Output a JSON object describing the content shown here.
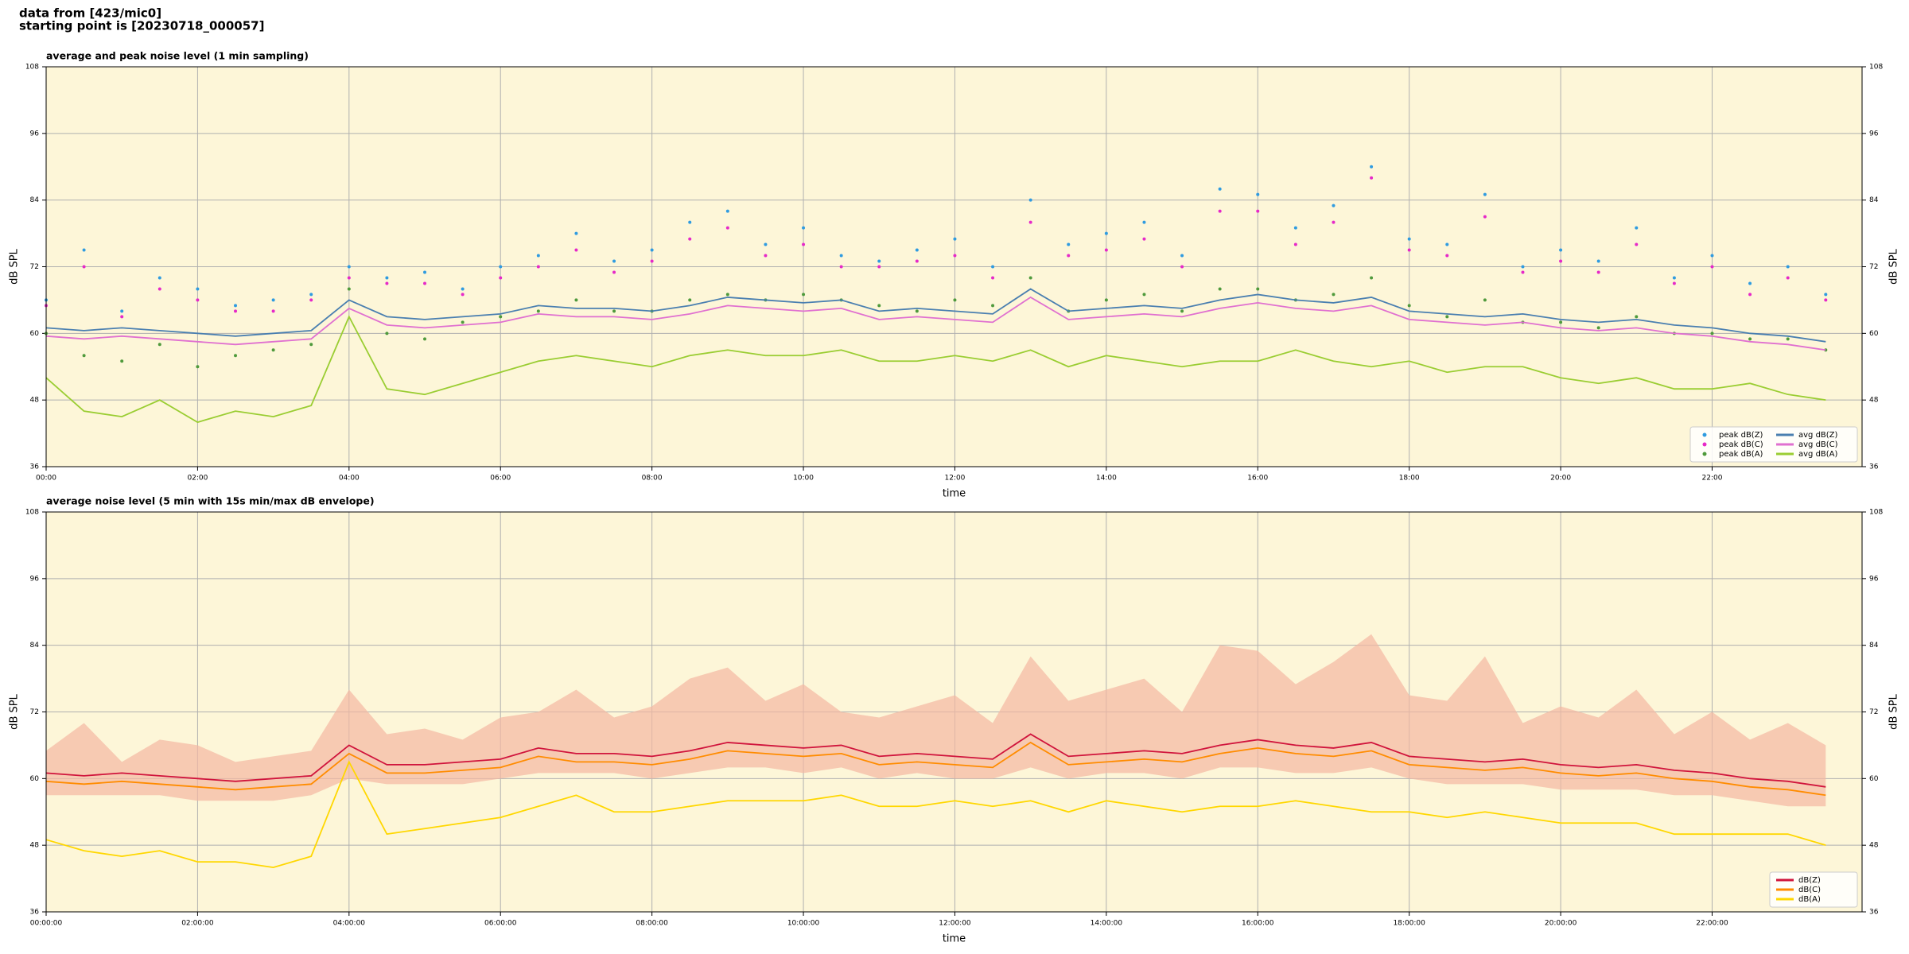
{
  "header": {
    "lines": [
      "data from [423/mic0]",
      "starting point is [20230718_000057]"
    ]
  },
  "chart_data": [
    {
      "type": "line",
      "title": "average and peak noise level (1 min sampling)",
      "x_label": "time",
      "y_label": "dB SPL",
      "y2_label": "dB SPL",
      "background": "#fdf6d8",
      "grid": true,
      "legend": "lower right",
      "xlim": [
        0,
        23.98
      ],
      "xticks": [
        {
          "value": 0,
          "label": "00:00"
        },
        {
          "value": 2,
          "label": "02:00"
        },
        {
          "value": 4,
          "label": "04:00"
        },
        {
          "value": 6,
          "label": "06:00"
        },
        {
          "value": 8,
          "label": "08:00"
        },
        {
          "value": 10,
          "label": "10:00"
        },
        {
          "value": 12,
          "label": "12:00"
        },
        {
          "value": 14,
          "label": "14:00"
        },
        {
          "value": 16,
          "label": "16:00"
        },
        {
          "value": 18,
          "label": "18:00"
        },
        {
          "value": 20,
          "label": "20:00"
        },
        {
          "value": 22,
          "label": "22:00"
        }
      ],
      "ylim": [
        36,
        108
      ],
      "yticks": [
        36,
        48,
        60,
        72,
        84,
        96,
        108
      ],
      "x": [
        0,
        0.5,
        1,
        1.5,
        2,
        2.5,
        3,
        3.5,
        4,
        4.5,
        5,
        5.5,
        6,
        6.5,
        7,
        7.5,
        8,
        8.5,
        9,
        9.5,
        10,
        10.5,
        11,
        11.5,
        12,
        12.5,
        13,
        13.5,
        14,
        14.5,
        15,
        15.5,
        16,
        16.5,
        17,
        17.5,
        18,
        18.5,
        19,
        19.5,
        20,
        20.5,
        21,
        21.5,
        22,
        22.5,
        23,
        23.5
      ],
      "series": [
        {
          "name": "peak dB(Z)",
          "style": "points",
          "color": "#2f9be0",
          "values": [
            66,
            75,
            64,
            70,
            68,
            65,
            66,
            67,
            72,
            70,
            71,
            68,
            72,
            74,
            78,
            73,
            75,
            80,
            82,
            76,
            79,
            74,
            73,
            75,
            77,
            72,
            84,
            76,
            78,
            80,
            74,
            86,
            85,
            79,
            83,
            90,
            77,
            76,
            85,
            72,
            75,
            73,
            79,
            70,
            74,
            69,
            72,
            67
          ]
        },
        {
          "name": "peak dB(C)",
          "style": "points",
          "color": "#e629c8",
          "values": [
            65,
            72,
            63,
            68,
            66,
            64,
            64,
            66,
            70,
            69,
            69,
            67,
            70,
            72,
            75,
            71,
            73,
            77,
            79,
            74,
            76,
            72,
            72,
            73,
            74,
            70,
            80,
            74,
            75,
            77,
            72,
            82,
            82,
            76,
            80,
            88,
            75,
            74,
            81,
            71,
            73,
            71,
            76,
            69,
            72,
            67,
            70,
            66
          ]
        },
        {
          "name": "peak dB(A)",
          "style": "points",
          "color": "#4f9a3c",
          "values": [
            60,
            56,
            55,
            58,
            54,
            56,
            57,
            58,
            68,
            60,
            59,
            62,
            63,
            64,
            66,
            64,
            64,
            66,
            67,
            66,
            67,
            66,
            65,
            64,
            66,
            65,
            70,
            64,
            66,
            67,
            64,
            68,
            68,
            66,
            67,
            70,
            65,
            63,
            66,
            62,
            62,
            61,
            63,
            60,
            60,
            59,
            59,
            57
          ]
        },
        {
          "name": "avg dB(Z)",
          "style": "line",
          "color": "#4a7fb0",
          "values": [
            61,
            60.5,
            61,
            60.5,
            60,
            59.5,
            60,
            60.5,
            66,
            63,
            62.5,
            63,
            63.5,
            65,
            64.5,
            64.5,
            64,
            65,
            66.5,
            66,
            65.5,
            66,
            64,
            64.5,
            64,
            63.5,
            68,
            64,
            64.5,
            65,
            64.5,
            66,
            67,
            66,
            65.5,
            66.5,
            64,
            63.5,
            63,
            63.5,
            62.5,
            62,
            62.5,
            61.5,
            61,
            60,
            59.5,
            58.5
          ]
        },
        {
          "name": "avg dB(C)",
          "style": "line",
          "color": "#e070d0",
          "values": [
            59.5,
            59,
            59.5,
            59,
            58.5,
            58,
            58.5,
            59,
            64.5,
            61.5,
            61,
            61.5,
            62,
            63.5,
            63,
            63,
            62.5,
            63.5,
            65,
            64.5,
            64,
            64.5,
            62.5,
            63,
            62.5,
            62,
            66.5,
            62.5,
            63,
            63.5,
            63,
            64.5,
            65.5,
            64.5,
            64,
            65,
            62.5,
            62,
            61.5,
            62,
            61,
            60.5,
            61,
            60,
            59.5,
            58.5,
            58,
            57
          ]
        },
        {
          "name": "avg dB(A)",
          "style": "line",
          "color": "#9acd32",
          "values": [
            52,
            46,
            45,
            48,
            44,
            46,
            45,
            47,
            63,
            50,
            49,
            51,
            53,
            55,
            56,
            55,
            54,
            56,
            57,
            56,
            56,
            57,
            55,
            55,
            56,
            55,
            57,
            54,
            56,
            55,
            54,
            55,
            55,
            57,
            55,
            54,
            55,
            53,
            54,
            54,
            52,
            51,
            52,
            50,
            50,
            51,
            49,
            48
          ]
        }
      ]
    },
    {
      "type": "line",
      "title": "average noise level (5 min with 15s min/max dB envelope)",
      "x_label": "time",
      "y_label": "dB SPL",
      "y2_label": "dB SPL",
      "background": "#fdf6d8",
      "grid": true,
      "legend": "lower right",
      "xlim": [
        0,
        23.98
      ],
      "xticks": [
        {
          "value": 0,
          "label": "00:00:00"
        },
        {
          "value": 2,
          "label": "02:00:00"
        },
        {
          "value": 4,
          "label": "04:00:00"
        },
        {
          "value": 6,
          "label": "06:00:00"
        },
        {
          "value": 8,
          "label": "08:00:00"
        },
        {
          "value": 10,
          "label": "10:00:00"
        },
        {
          "value": 12,
          "label": "12:00:00"
        },
        {
          "value": 14,
          "label": "14:00:00"
        },
        {
          "value": 16,
          "label": "16:00:00"
        },
        {
          "value": 18,
          "label": "18:00:00"
        },
        {
          "value": 20,
          "label": "20:00:00"
        },
        {
          "value": 22,
          "label": "22:00:00"
        }
      ],
      "ylim": [
        36,
        108
      ],
      "yticks": [
        36,
        48,
        60,
        72,
        84,
        96,
        108
      ],
      "x": [
        0,
        0.5,
        1,
        1.5,
        2,
        2.5,
        3,
        3.5,
        4,
        4.5,
        5,
        5.5,
        6,
        6.5,
        7,
        7.5,
        8,
        8.5,
        9,
        9.5,
        10,
        10.5,
        11,
        11.5,
        12,
        12.5,
        13,
        13.5,
        14,
        14.5,
        15,
        15.5,
        16,
        16.5,
        17,
        17.5,
        18,
        18.5,
        19,
        19.5,
        20,
        20.5,
        21,
        21.5,
        22,
        22.5,
        23,
        23.5
      ],
      "envelope": {
        "color": "#f4b8a2",
        "high": [
          65,
          70,
          63,
          67,
          66,
          63,
          64,
          65,
          76,
          68,
          69,
          67,
          71,
          72,
          76,
          71,
          73,
          78,
          80,
          74,
          77,
          72,
          71,
          73,
          75,
          70,
          82,
          74,
          76,
          78,
          72,
          84,
          83,
          77,
          81,
          86,
          75,
          74,
          82,
          70,
          73,
          71,
          76,
          68,
          72,
          67,
          70,
          66
        ],
        "low": [
          57,
          57,
          57,
          57,
          56,
          56,
          56,
          57,
          60,
          59,
          59,
          59,
          60,
          61,
          61,
          61,
          60,
          61,
          62,
          62,
          61,
          62,
          60,
          61,
          60,
          60,
          62,
          60,
          61,
          61,
          60,
          62,
          62,
          61,
          61,
          62,
          60,
          59,
          59,
          59,
          58,
          58,
          58,
          57,
          57,
          56,
          55,
          55
        ]
      },
      "series": [
        {
          "name": "dB(Z)",
          "style": "line",
          "color": "#d0143c",
          "values": [
            61,
            60.5,
            61,
            60.5,
            60,
            59.5,
            60,
            60.5,
            66,
            62.5,
            62.5,
            63,
            63.5,
            65.5,
            64.5,
            64.5,
            64,
            65,
            66.5,
            66,
            65.5,
            66,
            64,
            64.5,
            64,
            63.5,
            68,
            64,
            64.5,
            65,
            64.5,
            66,
            67,
            66,
            65.5,
            66.5,
            64,
            63.5,
            63,
            63.5,
            62.5,
            62,
            62.5,
            61.5,
            61,
            60,
            59.5,
            58.5
          ]
        },
        {
          "name": "dB(C)",
          "style": "line",
          "color": "#ff8c00",
          "values": [
            59.5,
            59,
            59.5,
            59,
            58.5,
            58,
            58.5,
            59,
            64.5,
            61,
            61,
            61.5,
            62,
            64,
            63,
            63,
            62.5,
            63.5,
            65,
            64.5,
            64,
            64.5,
            62.5,
            63,
            62.5,
            62,
            66.5,
            62.5,
            63,
            63.5,
            63,
            64.5,
            65.5,
            64.5,
            64,
            65,
            62.5,
            62,
            61.5,
            62,
            61,
            60.5,
            61,
            60,
            59.5,
            58.5,
            58,
            57
          ]
        },
        {
          "name": "dB(A)",
          "style": "line",
          "color": "#ffd700",
          "values": [
            49,
            47,
            46,
            47,
            45,
            45,
            44,
            46,
            63,
            50,
            51,
            52,
            53,
            55,
            57,
            54,
            54,
            55,
            56,
            56,
            56,
            57,
            55,
            55,
            56,
            55,
            56,
            54,
            56,
            55,
            54,
            55,
            55,
            56,
            55,
            54,
            54,
            53,
            54,
            53,
            52,
            52,
            52,
            50,
            50,
            50,
            50,
            48
          ]
        }
      ]
    }
  ]
}
